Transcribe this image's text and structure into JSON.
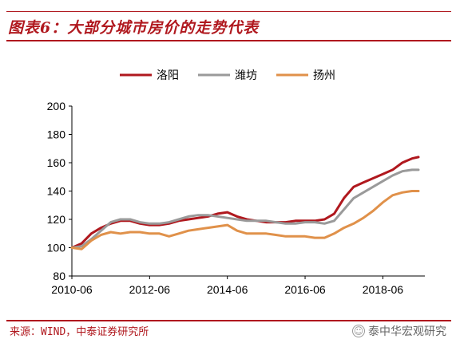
{
  "header": {
    "title": "图表6：大部分城市房价的走势代表"
  },
  "footer": {
    "source": "来源：WIND，中泰证券研究所",
    "watermark": "泰中华宏观研究"
  },
  "colors": {
    "accent": "#b0181e",
    "luoyang": "#b0181e",
    "weifang": "#9a9a9a",
    "yangzhou": "#e0914a"
  },
  "chart_data": {
    "type": "line",
    "title": "",
    "xlabel": "",
    "ylabel": "",
    "ylim": [
      80,
      200
    ],
    "yticks": [
      80,
      100,
      120,
      140,
      160,
      180,
      200
    ],
    "xtick_labels": [
      "2010-06",
      "2012-06",
      "2014-06",
      "2016-06",
      "2018-06"
    ],
    "xlim": [
      "2010-06",
      "2019-05"
    ],
    "legend_position": "top-center",
    "grid": false,
    "x": [
      "2010-06",
      "2010-09",
      "2010-12",
      "2011-03",
      "2011-06",
      "2011-09",
      "2011-12",
      "2012-03",
      "2012-06",
      "2012-09",
      "2012-12",
      "2013-03",
      "2013-06",
      "2013-09",
      "2013-12",
      "2014-03",
      "2014-06",
      "2014-09",
      "2014-12",
      "2015-03",
      "2015-06",
      "2015-09",
      "2015-12",
      "2016-03",
      "2016-06",
      "2016-09",
      "2016-12",
      "2017-03",
      "2017-06",
      "2017-09",
      "2017-12",
      "2018-03",
      "2018-06",
      "2018-09",
      "2018-12",
      "2019-03",
      "2019-05"
    ],
    "series": [
      {
        "name": "洛阳",
        "color": "#b0181e",
        "values": [
          100,
          103,
          110,
          114,
          117,
          119,
          119,
          117,
          116,
          116,
          117,
          119,
          120,
          121,
          122,
          124,
          125,
          122,
          120,
          119,
          118,
          118,
          118,
          119,
          119,
          119,
          120,
          124,
          135,
          143,
          146,
          149,
          152,
          155,
          160,
          163,
          164
        ]
      },
      {
        "name": "潍坊",
        "color": "#9a9a9a",
        "values": [
          100,
          101,
          106,
          112,
          118,
          120,
          120,
          118,
          117,
          117,
          118,
          120,
          122,
          123,
          123,
          122,
          121,
          120,
          119,
          119,
          119,
          118,
          117,
          117,
          118,
          118,
          117,
          119,
          127,
          135,
          139,
          143,
          147,
          151,
          154,
          155,
          155
        ]
      },
      {
        "name": "扬州",
        "color": "#e0914a",
        "values": [
          100,
          99,
          105,
          109,
          111,
          110,
          111,
          111,
          110,
          110,
          108,
          110,
          112,
          113,
          114,
          115,
          116,
          112,
          110,
          110,
          110,
          109,
          108,
          108,
          108,
          107,
          107,
          110,
          114,
          117,
          121,
          126,
          132,
          137,
          139,
          140,
          140
        ]
      }
    ]
  }
}
